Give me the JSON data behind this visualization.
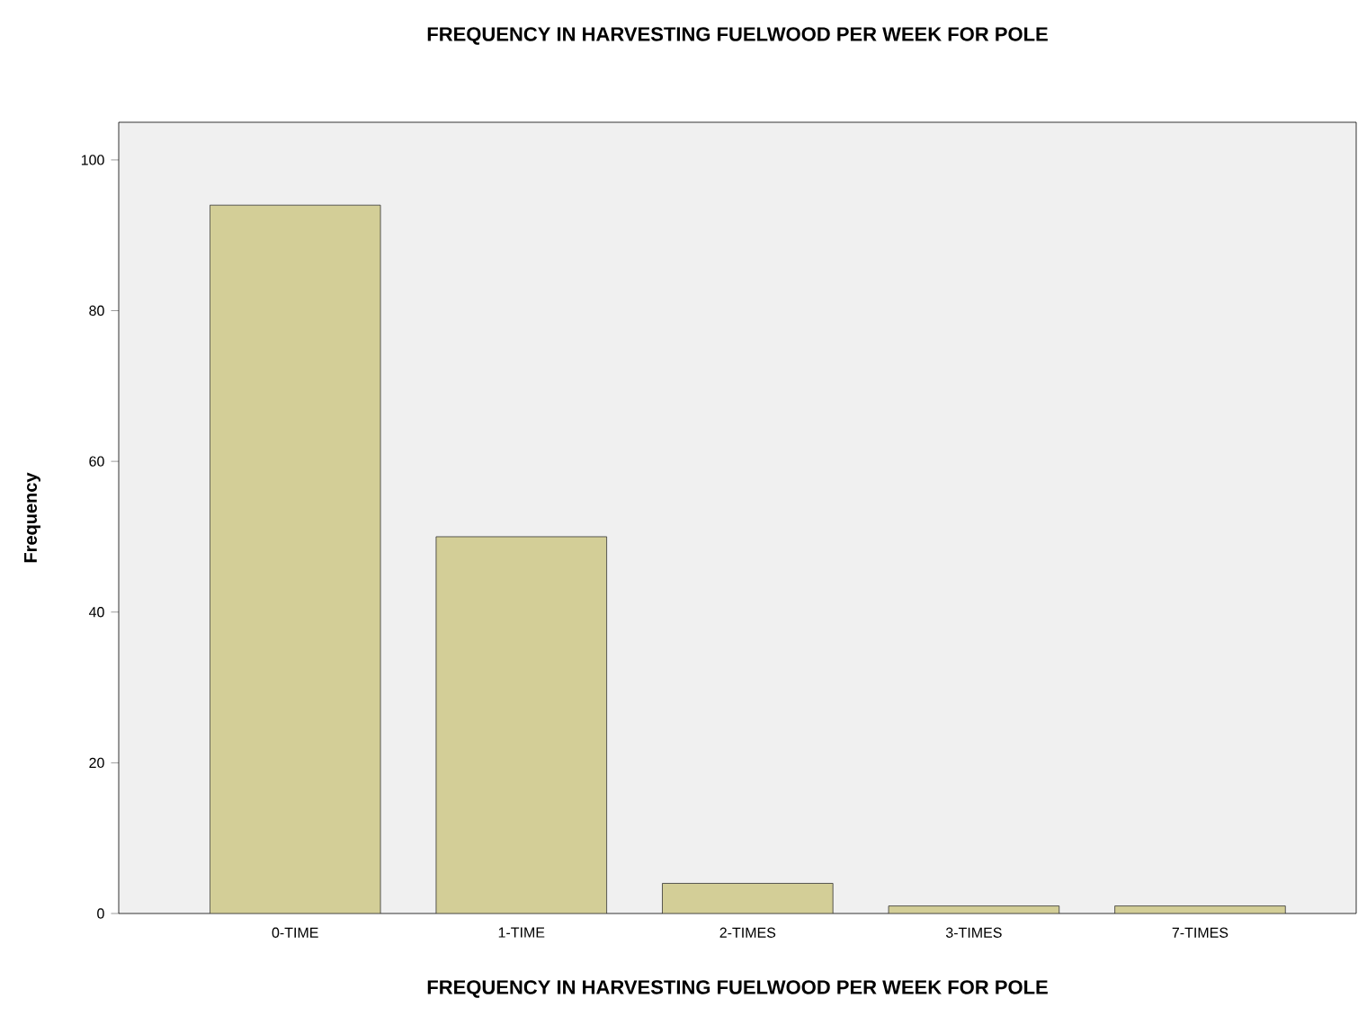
{
  "chart_data": {
    "type": "bar",
    "title": "FREQUENCY IN HARVESTING FUELWOOD PER WEEK FOR POLE",
    "xlabel": "FREQUENCY IN HARVESTING FUELWOOD PER WEEK FOR POLE",
    "ylabel": "Frequency",
    "categories": [
      "0-TIME",
      "1-TIME",
      "2-TIMES",
      "3-TIMES",
      "7-TIMES"
    ],
    "values": [
      94,
      50,
      4,
      1,
      1
    ],
    "color": "#d3ce97",
    "ylim": [
      0,
      105
    ],
    "yticks": [
      0,
      20,
      40,
      60,
      80,
      100
    ],
    "grid": false
  }
}
